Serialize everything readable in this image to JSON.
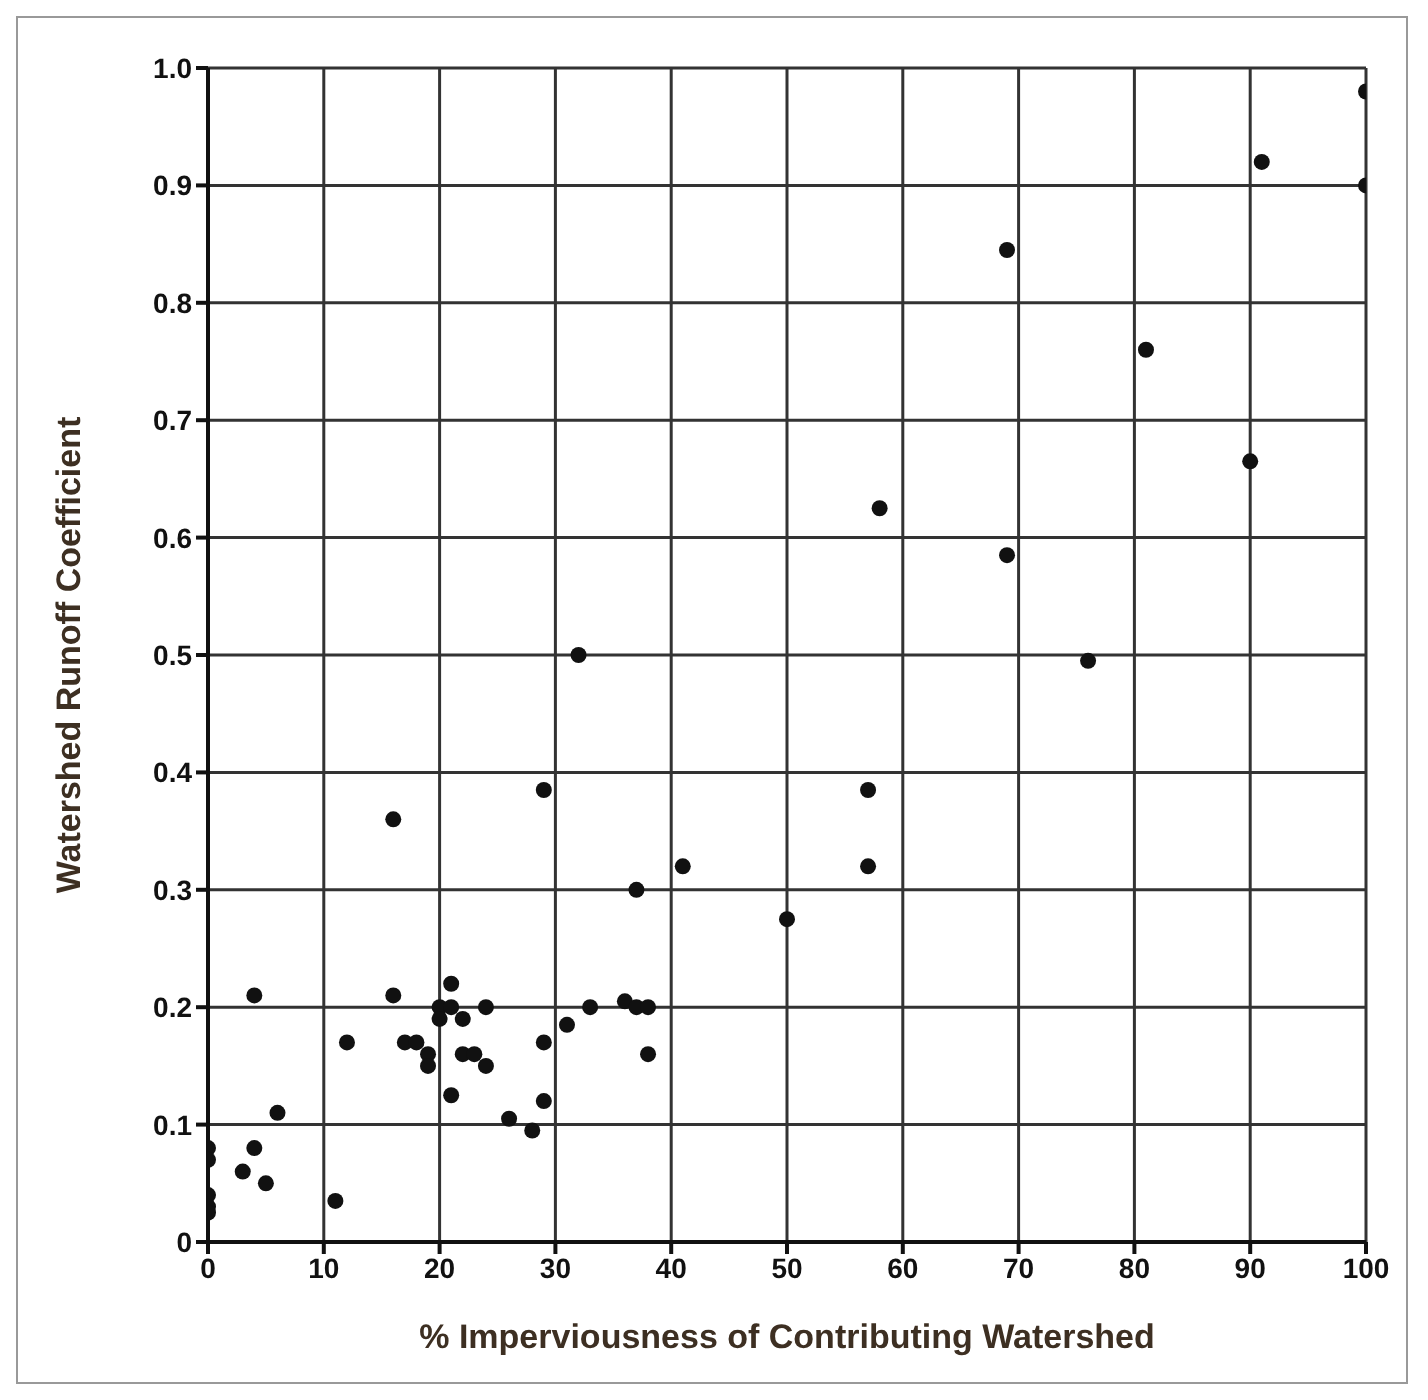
{
  "chart_data": {
    "type": "scatter",
    "xlabel": "% Imperviousness of Contributing Watershed",
    "ylabel": "Watershed Runoff Coefficient",
    "x": [
      0,
      0,
      0,
      0,
      0,
      3,
      4,
      4,
      5,
      6,
      11,
      12,
      16,
      16,
      17,
      18,
      19,
      19,
      20,
      20,
      21,
      21,
      21,
      22,
      22,
      23,
      24,
      24,
      26,
      28,
      29,
      29,
      29,
      31,
      32,
      33,
      36,
      37,
      37,
      38,
      38,
      41,
      50,
      57,
      57,
      58,
      69,
      69,
      76,
      81,
      90,
      91,
      100,
      100
    ],
    "series": [
      {
        "color": "#111111",
        "values": [
          0.08,
          0.07,
          0.04,
          0.03,
          0.025,
          0.06,
          0.08,
          0.21,
          0.05,
          0.11,
          0.035,
          0.17,
          0.36,
          0.21,
          0.17,
          0.17,
          0.16,
          0.15,
          0.2,
          0.19,
          0.22,
          0.2,
          0.125,
          0.19,
          0.16,
          0.16,
          0.2,
          0.15,
          0.105,
          0.095,
          0.17,
          0.12,
          0.385,
          0.185,
          0.5,
          0.2,
          0.205,
          0.3,
          0.2,
          0.2,
          0.16,
          0.32,
          0.275,
          0.385,
          0.32,
          0.625,
          0.845,
          0.585,
          0.495,
          0.76,
          0.665,
          0.92,
          0.98,
          0.9
        ]
      }
    ],
    "xlim": [
      0,
      100
    ],
    "xticks": [
      0,
      10,
      20,
      30,
      40,
      50,
      60,
      70,
      80,
      90,
      100
    ],
    "ylim": [
      0,
      1
    ],
    "yticks": [
      0,
      {
        "value": 0.1,
        "label": "0.1"
      },
      {
        "value": 0.2,
        "label": "0.2"
      },
      {
        "value": 0.3,
        "label": "0.3"
      },
      {
        "value": 0.4,
        "label": "0.4"
      },
      {
        "value": 0.5,
        "label": "0.5"
      },
      {
        "value": 0.6,
        "label": "0.6"
      },
      {
        "value": 0.7,
        "label": "0.7"
      },
      {
        "value": 0.8,
        "label": "0.8"
      },
      {
        "value": 0.9,
        "label": "0.9"
      },
      {
        "value": 1,
        "label": "1.0"
      }
    ],
    "grid": true,
    "marker": "circle"
  }
}
